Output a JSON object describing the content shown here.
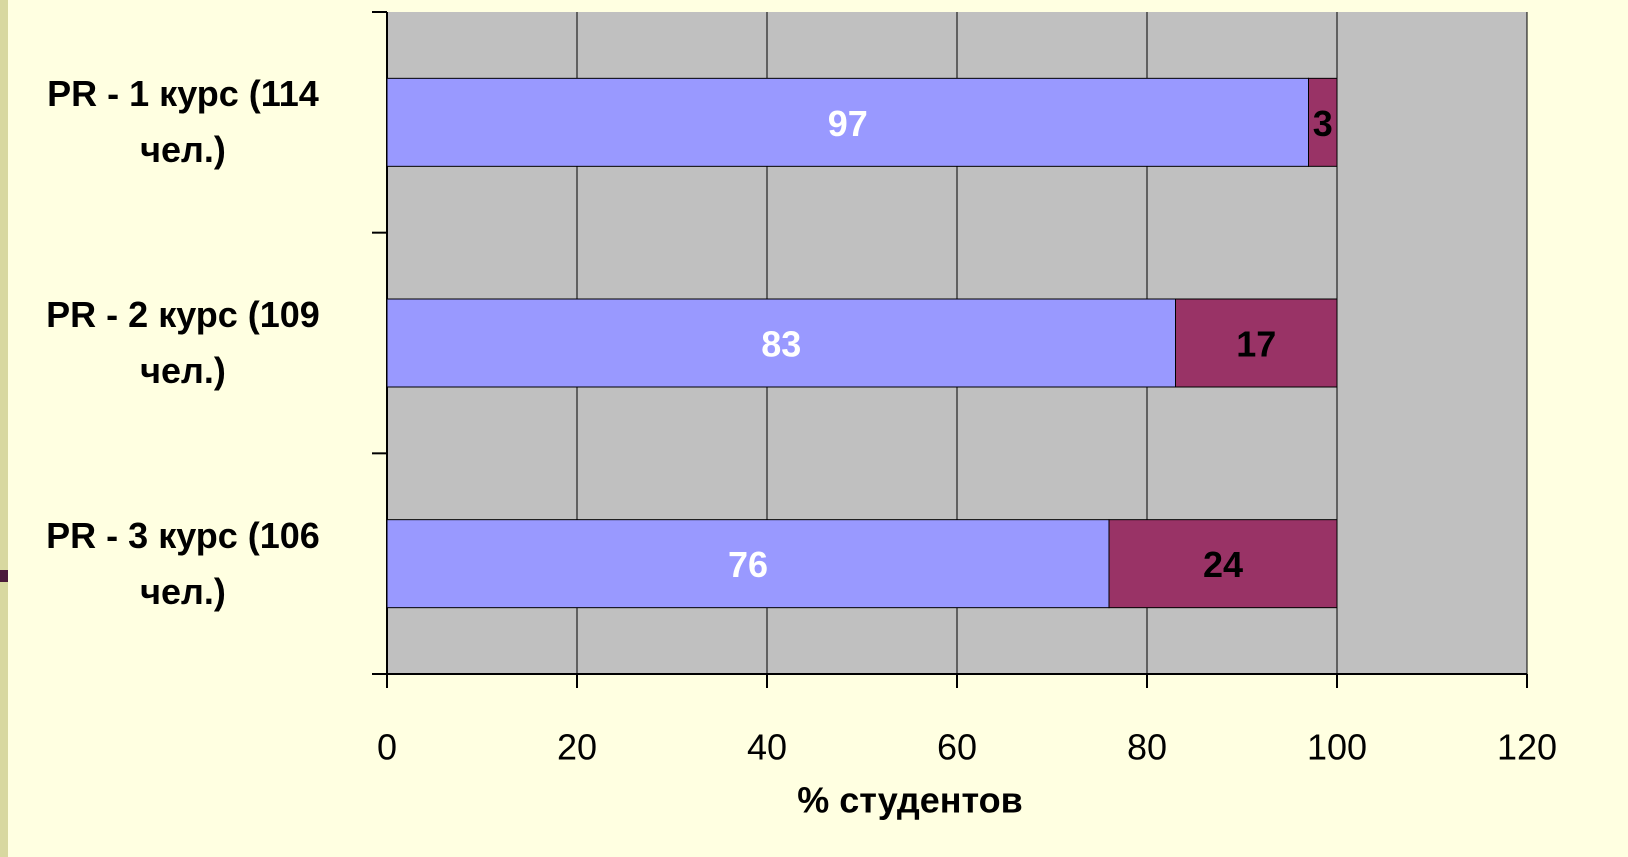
{
  "chart_data": {
    "type": "stacked_barh",
    "x_label": "% студентов",
    "categories": [
      "PR  - 1 курс (114 чел.)",
      "PR  - 2 курс (109 чел.)",
      "PR  - 3 курс (106 чел.)"
    ],
    "series": [
      {
        "color": "#9999ff",
        "label_color": "#ffffff",
        "values": [
          97,
          83,
          76
        ]
      },
      {
        "color": "#993366",
        "label_color": "#000000",
        "values": [
          3,
          17,
          24
        ]
      }
    ],
    "xlim": [
      0,
      120
    ],
    "xticks": [
      0,
      20,
      40,
      60,
      80,
      100,
      120
    ],
    "grid": true
  }
}
